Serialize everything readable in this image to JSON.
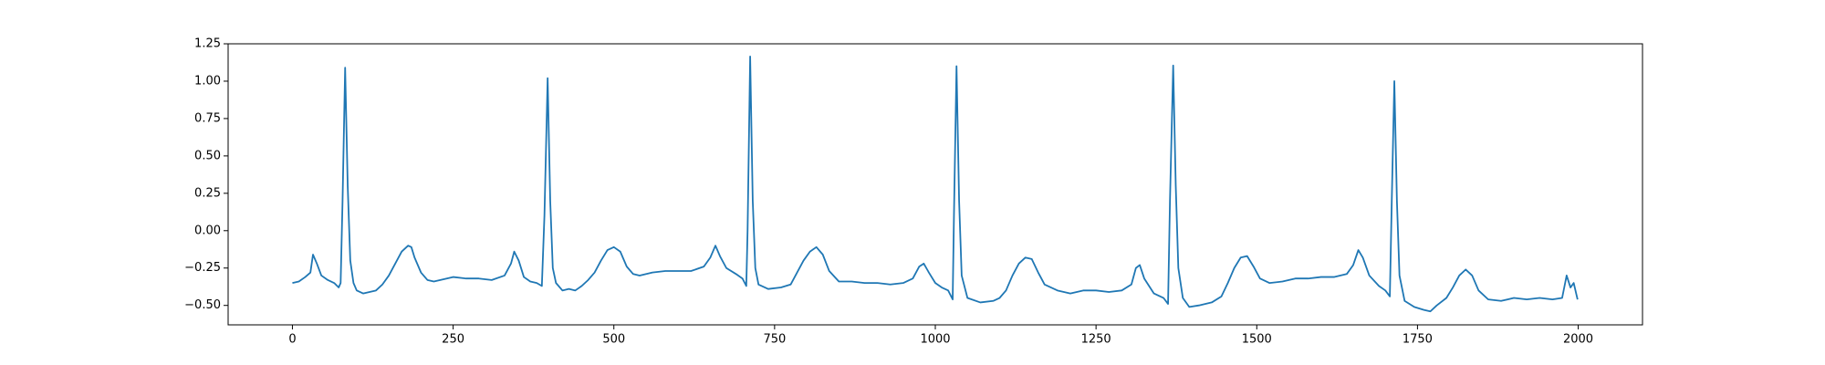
{
  "chart_data": {
    "type": "line",
    "color": "#1f77b4",
    "xlim": [
      -100,
      2100
    ],
    "xticks": [
      0,
      250,
      500,
      750,
      1000,
      1250,
      1500,
      1750,
      2000
    ],
    "ylim": [
      -0.63,
      1.25
    ],
    "yticks": [
      {
        "value": -0.5,
        "label": "−0.50"
      },
      {
        "value": -0.25,
        "label": "−0.25"
      },
      {
        "value": 0,
        "label": "0.00"
      },
      {
        "value": 0.25,
        "label": "0.25"
      },
      {
        "value": 0.5,
        "label": "0.50"
      },
      {
        "value": 0.75,
        "label": "0.75"
      },
      {
        "value": 1.0,
        "label": "1.00"
      },
      {
        "value": 1.25,
        "label": "1.25"
      }
    ],
    "x": [
      0,
      10,
      20,
      28,
      32,
      38,
      45,
      55,
      65,
      72,
      75,
      78,
      82,
      86,
      90,
      95,
      100,
      110,
      120,
      130,
      140,
      150,
      160,
      170,
      180,
      185,
      190,
      200,
      210,
      220,
      230,
      250,
      270,
      290,
      310,
      330,
      340,
      345,
      352,
      360,
      370,
      380,
      388,
      392,
      397,
      401,
      405,
      410,
      420,
      430,
      440,
      450,
      460,
      470,
      480,
      490,
      500,
      510,
      520,
      530,
      540,
      560,
      580,
      600,
      620,
      640,
      650,
      658,
      665,
      675,
      690,
      700,
      706,
      708,
      712,
      716,
      720,
      725,
      740,
      760,
      775,
      785,
      795,
      805,
      815,
      825,
      835,
      850,
      870,
      890,
      910,
      930,
      950,
      965,
      975,
      982,
      990,
      1000,
      1010,
      1020,
      1027,
      1029,
      1033,
      1037,
      1041,
      1050,
      1070,
      1090,
      1100,
      1110,
      1120,
      1130,
      1140,
      1150,
      1160,
      1170,
      1190,
      1210,
      1230,
      1250,
      1270,
      1290,
      1305,
      1312,
      1318,
      1325,
      1340,
      1355,
      1362,
      1365,
      1370,
      1374,
      1378,
      1385,
      1395,
      1410,
      1430,
      1445,
      1455,
      1465,
      1475,
      1485,
      1495,
      1505,
      1520,
      1540,
      1560,
      1580,
      1600,
      1620,
      1640,
      1650,
      1658,
      1665,
      1675,
      1690,
      1700,
      1707,
      1710,
      1714,
      1718,
      1722,
      1730,
      1745,
      1760,
      1770,
      1780,
      1795,
      1805,
      1815,
      1825,
      1835,
      1845,
      1860,
      1880,
      1900,
      1920,
      1940,
      1960,
      1975,
      1982,
      1988,
      1993,
      1999
    ],
    "values": [
      -0.35,
      -0.34,
      -0.31,
      -0.28,
      -0.16,
      -0.22,
      -0.3,
      -0.33,
      -0.35,
      -0.38,
      -0.35,
      0.2,
      1.09,
      0.3,
      -0.2,
      -0.35,
      -0.4,
      -0.42,
      -0.41,
      -0.4,
      -0.36,
      -0.3,
      -0.22,
      -0.14,
      -0.1,
      -0.11,
      -0.18,
      -0.28,
      -0.33,
      -0.34,
      -0.33,
      -0.31,
      -0.32,
      -0.32,
      -0.33,
      -0.3,
      -0.22,
      -0.14,
      -0.2,
      -0.31,
      -0.34,
      -0.35,
      -0.37,
      0.1,
      1.02,
      0.2,
      -0.25,
      -0.35,
      -0.4,
      -0.39,
      -0.4,
      -0.37,
      -0.33,
      -0.28,
      -0.2,
      -0.13,
      -0.11,
      -0.14,
      -0.24,
      -0.29,
      -0.3,
      -0.28,
      -0.27,
      -0.27,
      -0.27,
      -0.24,
      -0.18,
      -0.1,
      -0.17,
      -0.25,
      -0.29,
      -0.32,
      -0.37,
      0.0,
      1.165,
      0.2,
      -0.25,
      -0.36,
      -0.39,
      -0.38,
      -0.36,
      -0.28,
      -0.2,
      -0.14,
      -0.11,
      -0.16,
      -0.27,
      -0.34,
      -0.34,
      -0.35,
      -0.35,
      -0.36,
      -0.35,
      -0.32,
      -0.24,
      -0.22,
      -0.28,
      -0.35,
      -0.38,
      -0.4,
      -0.46,
      0.1,
      1.1,
      0.2,
      -0.3,
      -0.45,
      -0.48,
      -0.47,
      -0.45,
      -0.4,
      -0.3,
      -0.22,
      -0.18,
      -0.19,
      -0.28,
      -0.36,
      -0.4,
      -0.42,
      -0.4,
      -0.4,
      -0.41,
      -0.4,
      -0.36,
      -0.25,
      -0.23,
      -0.32,
      -0.42,
      -0.45,
      -0.49,
      0.2,
      1.105,
      0.3,
      -0.25,
      -0.45,
      -0.51,
      -0.5,
      -0.48,
      -0.44,
      -0.35,
      -0.25,
      -0.18,
      -0.17,
      -0.24,
      -0.32,
      -0.35,
      -0.34,
      -0.32,
      -0.32,
      -0.31,
      -0.31,
      -0.29,
      -0.23,
      -0.13,
      -0.18,
      -0.3,
      -0.37,
      -0.4,
      -0.44,
      0.2,
      1.0,
      0.2,
      -0.3,
      -0.47,
      -0.51,
      -0.53,
      -0.54,
      -0.5,
      -0.45,
      -0.38,
      -0.3,
      -0.26,
      -0.3,
      -0.4,
      -0.46,
      -0.47,
      -0.45,
      -0.46,
      -0.45,
      -0.46,
      -0.45,
      -0.3,
      -0.38,
      -0.35,
      -0.46
    ]
  }
}
